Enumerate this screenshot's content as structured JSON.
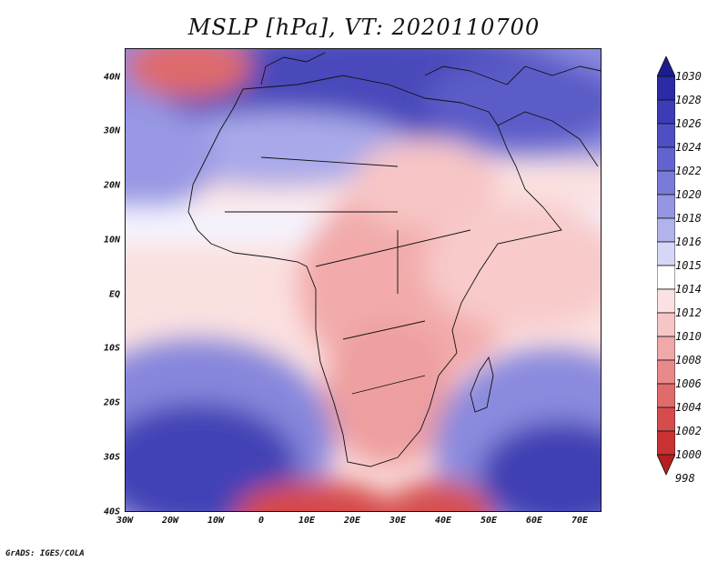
{
  "title": "MSLP [hPa], VT: 2020110700",
  "credit": "GrADS: IGES/COLA",
  "map": {
    "projection": "lat-lon",
    "region": "Africa",
    "lon_range": [
      -30,
      76
    ],
    "lat_range": [
      -40,
      45
    ],
    "field": "mean sea level pressure"
  },
  "x_ticks": [
    "30W",
    "20W",
    "10W",
    "0",
    "10E",
    "20E",
    "30E",
    "40E",
    "50E",
    "60E",
    "70E"
  ],
  "y_ticks": [
    "40N",
    "30N",
    "20N",
    "10N",
    "EQ",
    "10S",
    "20S",
    "30S",
    "40S"
  ],
  "colorbar": {
    "labels": [
      "1030",
      "1028",
      "1026",
      "1024",
      "1022",
      "1020",
      "1018",
      "1016",
      "1015",
      "1014",
      "1012",
      "1010",
      "1008",
      "1006",
      "1004",
      "1002",
      "1000",
      "998"
    ],
    "colors": [
      "#1c1c8e",
      "#2b2ba6",
      "#3c3cb8",
      "#4f4fc4",
      "#6363cf",
      "#7a7ad8",
      "#9595e2",
      "#b2b2ec",
      "#d6d6f6",
      "#ffffff",
      "#fbe1e1",
      "#f6c6c6",
      "#f0a8a8",
      "#e98a8a",
      "#e06b6b",
      "#d64c4c",
      "#c93232",
      "#b51f1f"
    ]
  }
}
